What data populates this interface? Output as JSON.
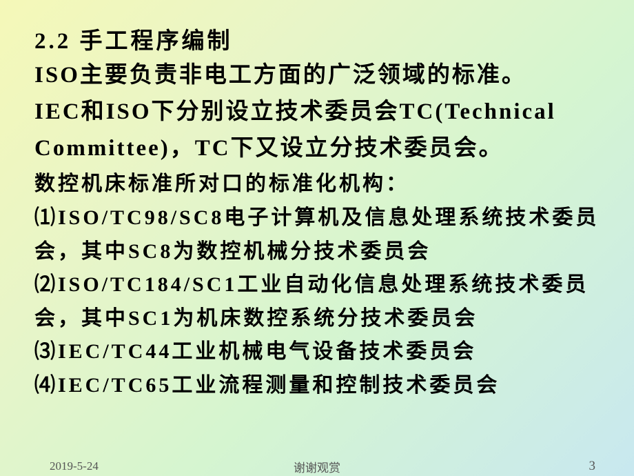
{
  "section_title": "2.2 手工程序编制",
  "para1_line1": "ISO主要负责非电工方面的广泛领域的标准。",
  "para1_line2": "IEC和ISO下分别设立技术委员会TC(Technical",
  "para1_line3": "Committee)，TC下又设立分技术委员会。",
  "para2": "数控机床标准所对口的标准化机构：",
  "item1_line1": "⑴ISO/TC98/SC8电子计算机及信息处理系统技术委员",
  "item1_line2": "会，其中SC8为数控机械分技术委员会",
  "item2_line1": "⑵ISO/TC184/SC1工业自动化信息处理系统技术委员",
  "item2_line2": "会，其中SC1为机床数控系统分技术委员会",
  "item3": "⑶IEC/TC44工业机械电气设备技术委员会",
  "item4": "⑷IEC/TC65工业流程测量和控制技术委员会",
  "footer_date": "2019-5-24",
  "footer_center": "谢谢观赏",
  "footer_page": "3",
  "colors": {
    "text": "#000000",
    "footer_text": "#555555",
    "bg_gradient_start": "#f5f8b8",
    "bg_gradient_end": "#c8e8f0"
  },
  "typography": {
    "title_fontsize": 33,
    "body_fontsize": 30,
    "footer_fontsize": 17,
    "font_family": "KaiTi"
  }
}
